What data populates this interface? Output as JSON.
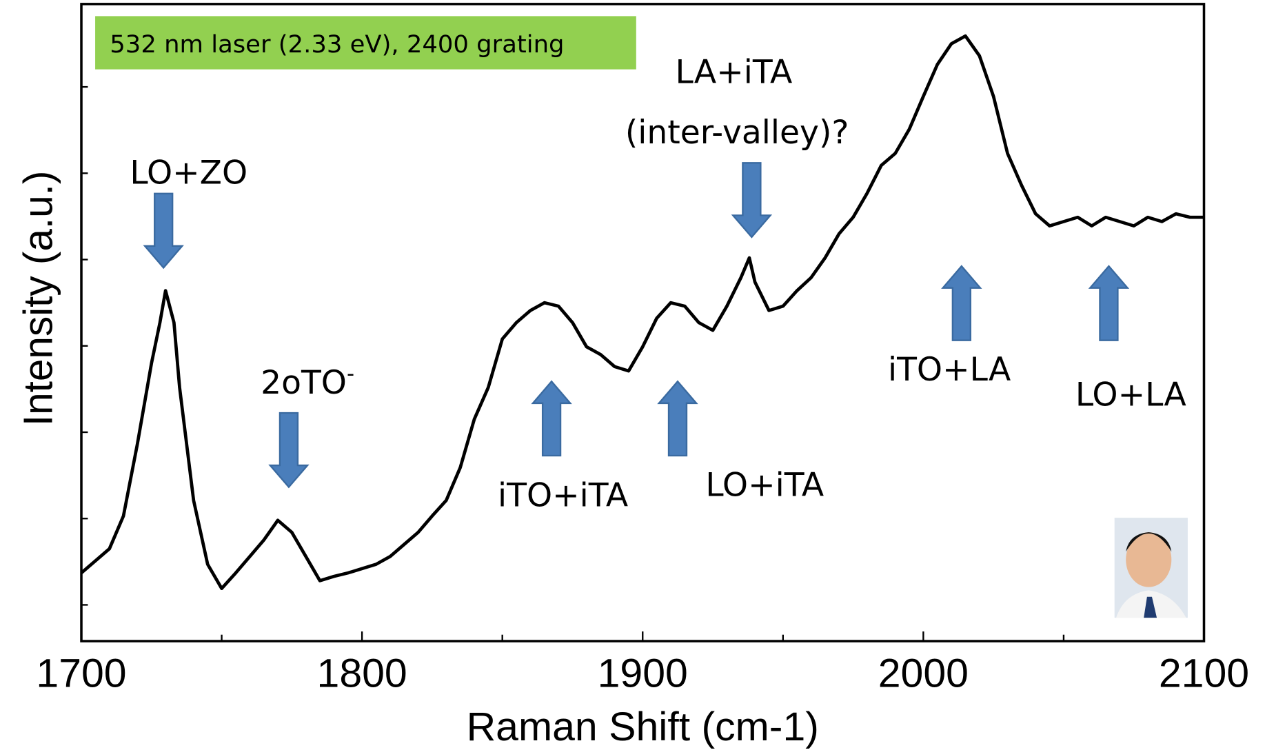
{
  "chart_data": {
    "type": "line",
    "xlabel": "Raman Shift (cm-1)",
    "ylabel": "Intensity (a.u.)",
    "note": "532 nm laser (2.33 eV), 2400 grating",
    "xlim": [
      1700,
      2100
    ],
    "xticks": [
      1700,
      1800,
      1900,
      2000,
      2100
    ],
    "x_minor_ticks": [
      1750,
      1850,
      1950,
      2050
    ],
    "ylim": [
      0.58,
      7.96
    ],
    "yticks": [
      1,
      2,
      3,
      4,
      5,
      6,
      7
    ],
    "annotations": [
      {
        "text": "LO+ZO"
      },
      {
        "text": "2oTO",
        "sup": "-"
      },
      {
        "text": "iTO+iTA"
      },
      {
        "text": "LO+iTA"
      },
      {
        "lines": [
          "LA+iTA",
          "(inter-valley)?"
        ]
      },
      {
        "text": "iTO+LA"
      },
      {
        "text": "LO+LA"
      }
    ],
    "series": [
      {
        "color": "#000000",
        "x": [
          1700,
          1705,
          1710,
          1715,
          1720,
          1725,
          1728,
          1730,
          1733,
          1735,
          1740,
          1745,
          1750,
          1755,
          1760,
          1765,
          1770,
          1775,
          1780,
          1785,
          1790,
          1795,
          1800,
          1805,
          1810,
          1815,
          1820,
          1825,
          1830,
          1835,
          1840,
          1845,
          1850,
          1855,
          1860,
          1865,
          1870,
          1875,
          1880,
          1885,
          1890,
          1895,
          1900,
          1905,
          1910,
          1915,
          1920,
          1925,
          1930,
          1935,
          1938,
          1940,
          1945,
          1950,
          1955,
          1960,
          1965,
          1970,
          1975,
          1980,
          1985,
          1990,
          1995,
          2000,
          2005,
          2010,
          2015,
          2020,
          2025,
          2030,
          2035,
          2040,
          2045,
          2050,
          2055,
          2060,
          2065,
          2070,
          2075,
          2080,
          2085,
          2090,
          2095,
          2100
        ],
        "values": [
          1.37,
          1.51,
          1.65,
          2.03,
          2.87,
          3.8,
          4.27,
          4.64,
          4.27,
          3.52,
          2.21,
          1.47,
          1.19,
          1.37,
          1.56,
          1.75,
          1.98,
          1.84,
          1.56,
          1.28,
          1.33,
          1.37,
          1.42,
          1.47,
          1.56,
          1.7,
          1.84,
          2.03,
          2.21,
          2.59,
          3.15,
          3.52,
          4.08,
          4.27,
          4.41,
          4.5,
          4.46,
          4.27,
          3.99,
          3.9,
          3.76,
          3.71,
          3.99,
          4.32,
          4.5,
          4.46,
          4.27,
          4.18,
          4.46,
          4.79,
          5.02,
          4.74,
          4.41,
          4.46,
          4.64,
          4.79,
          5.02,
          5.3,
          5.49,
          5.77,
          6.09,
          6.23,
          6.51,
          6.89,
          7.26,
          7.5,
          7.59,
          7.36,
          6.89,
          6.23,
          5.86,
          5.53,
          5.39,
          5.44,
          5.49,
          5.39,
          5.49,
          5.44,
          5.39,
          5.49,
          5.44,
          5.53,
          5.49,
          5.49
        ]
      }
    ]
  }
}
